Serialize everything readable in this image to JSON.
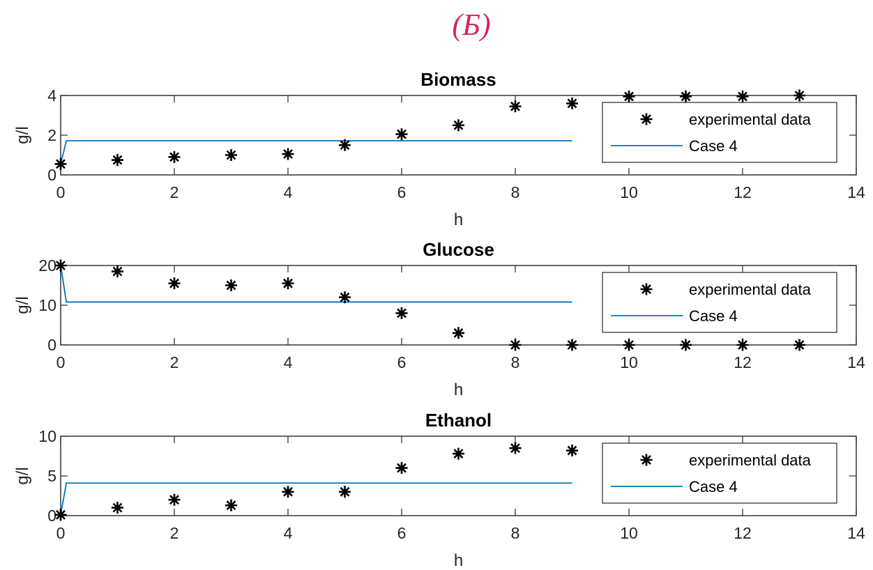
{
  "figure_label": "(Б)",
  "colors": {
    "figure_label": "#d6285a",
    "experimental": "#000000",
    "model": "#0072bd",
    "axes": "#262626"
  },
  "chart_data": [
    {
      "type": "line",
      "title": "Biomass",
      "xlabel": "h",
      "ylabel": "g/l",
      "xlim": [
        0,
        14
      ],
      "ylim": [
        0,
        4
      ],
      "xticks": [
        0,
        2,
        4,
        6,
        8,
        10,
        12,
        14
      ],
      "yticks": [
        0,
        2,
        4
      ],
      "grid": false,
      "legend": {
        "position": "right",
        "entries": [
          "experimental data",
          "Case 4"
        ]
      },
      "series": [
        {
          "name": "experimental data",
          "marker": "asterisk",
          "x": [
            0,
            1,
            2,
            3,
            4,
            5,
            6,
            7,
            8,
            9,
            10,
            11,
            12,
            13
          ],
          "y": [
            0.55,
            0.75,
            0.9,
            1.0,
            1.05,
            1.5,
            2.05,
            2.5,
            3.45,
            3.6,
            3.95,
            3.95,
            3.95,
            4.0
          ]
        },
        {
          "name": "Case 4",
          "marker": "line",
          "x": [
            0,
            0.1,
            9
          ],
          "y": [
            0.55,
            1.72,
            1.72
          ]
        }
      ]
    },
    {
      "type": "line",
      "title": "Glucose",
      "xlabel": "h",
      "ylabel": "g/l",
      "xlim": [
        0,
        14
      ],
      "ylim": [
        0,
        20
      ],
      "xticks": [
        0,
        2,
        4,
        6,
        8,
        10,
        12,
        14
      ],
      "yticks": [
        0,
        10,
        20
      ],
      "grid": false,
      "legend": {
        "position": "right",
        "entries": [
          "experimental data",
          "Case 4"
        ]
      },
      "series": [
        {
          "name": "experimental data",
          "marker": "asterisk",
          "x": [
            0,
            1,
            2,
            3,
            4,
            5,
            6,
            7,
            8,
            9,
            10,
            11,
            12,
            13
          ],
          "y": [
            20,
            18.5,
            15.5,
            15,
            15.5,
            12,
            8,
            3,
            0,
            0,
            0,
            0,
            0,
            0
          ]
        },
        {
          "name": "Case 4",
          "marker": "line",
          "x": [
            0,
            0.1,
            9
          ],
          "y": [
            20,
            10.8,
            10.8
          ]
        }
      ]
    },
    {
      "type": "line",
      "title": "Ethanol",
      "xlabel": "h",
      "ylabel": "g/l",
      "xlim": [
        0,
        14
      ],
      "ylim": [
        0,
        10
      ],
      "xticks": [
        0,
        2,
        4,
        6,
        8,
        10,
        12,
        14
      ],
      "yticks": [
        0,
        5,
        10
      ],
      "grid": false,
      "legend": {
        "position": "right",
        "entries": [
          "experimental data",
          "Case 4"
        ]
      },
      "series": [
        {
          "name": "experimental data",
          "marker": "asterisk",
          "x": [
            0,
            1,
            2,
            3,
            4,
            5,
            6,
            7,
            8,
            9
          ],
          "y": [
            0.1,
            1.0,
            2.0,
            1.3,
            3.0,
            3.0,
            6.0,
            7.8,
            8.5,
            8.2
          ]
        },
        {
          "name": "Case 4",
          "marker": "line",
          "x": [
            0,
            0.1,
            9
          ],
          "y": [
            0.1,
            4.1,
            4.1
          ]
        }
      ]
    }
  ]
}
